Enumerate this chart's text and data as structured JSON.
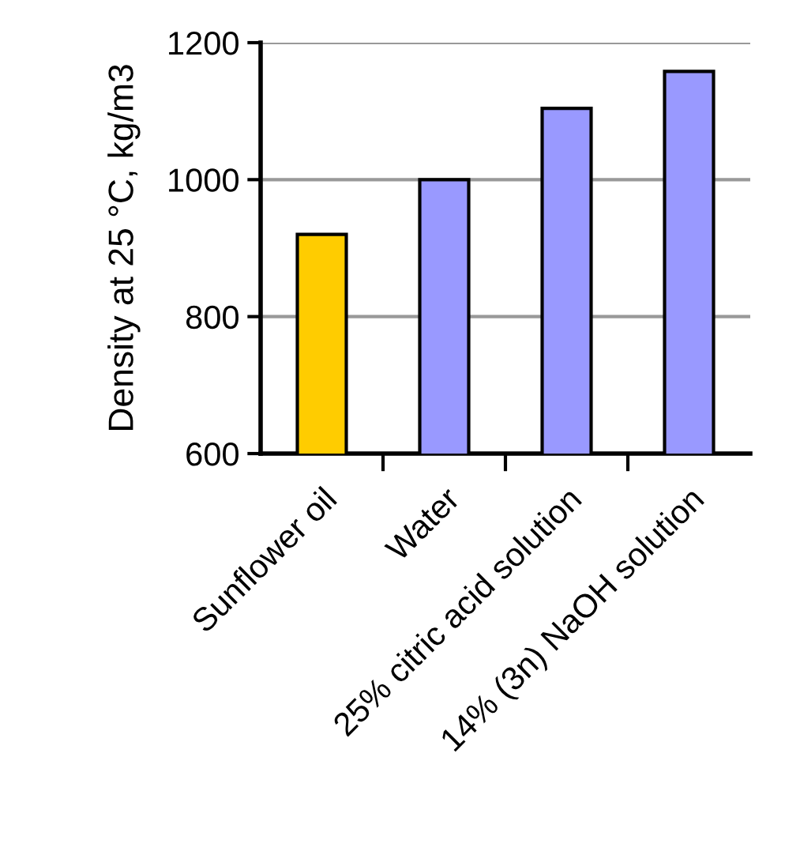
{
  "chart_data": {
    "type": "bar",
    "ylabel": "Density at 25 °C, kg/m3",
    "categories": [
      "Sunflower oil",
      "Water",
      "25% citric acid solution",
      "14% (3n) NaOH solution"
    ],
    "values": [
      920,
      1000,
      1104,
      1158
    ],
    "colors": [
      "#ffcc00",
      "#9999ff",
      "#9999ff",
      "#9999ff"
    ],
    "ylim": [
      600,
      1200
    ],
    "yticks": [
      600,
      800,
      1000,
      1200
    ],
    "grid": "y"
  }
}
